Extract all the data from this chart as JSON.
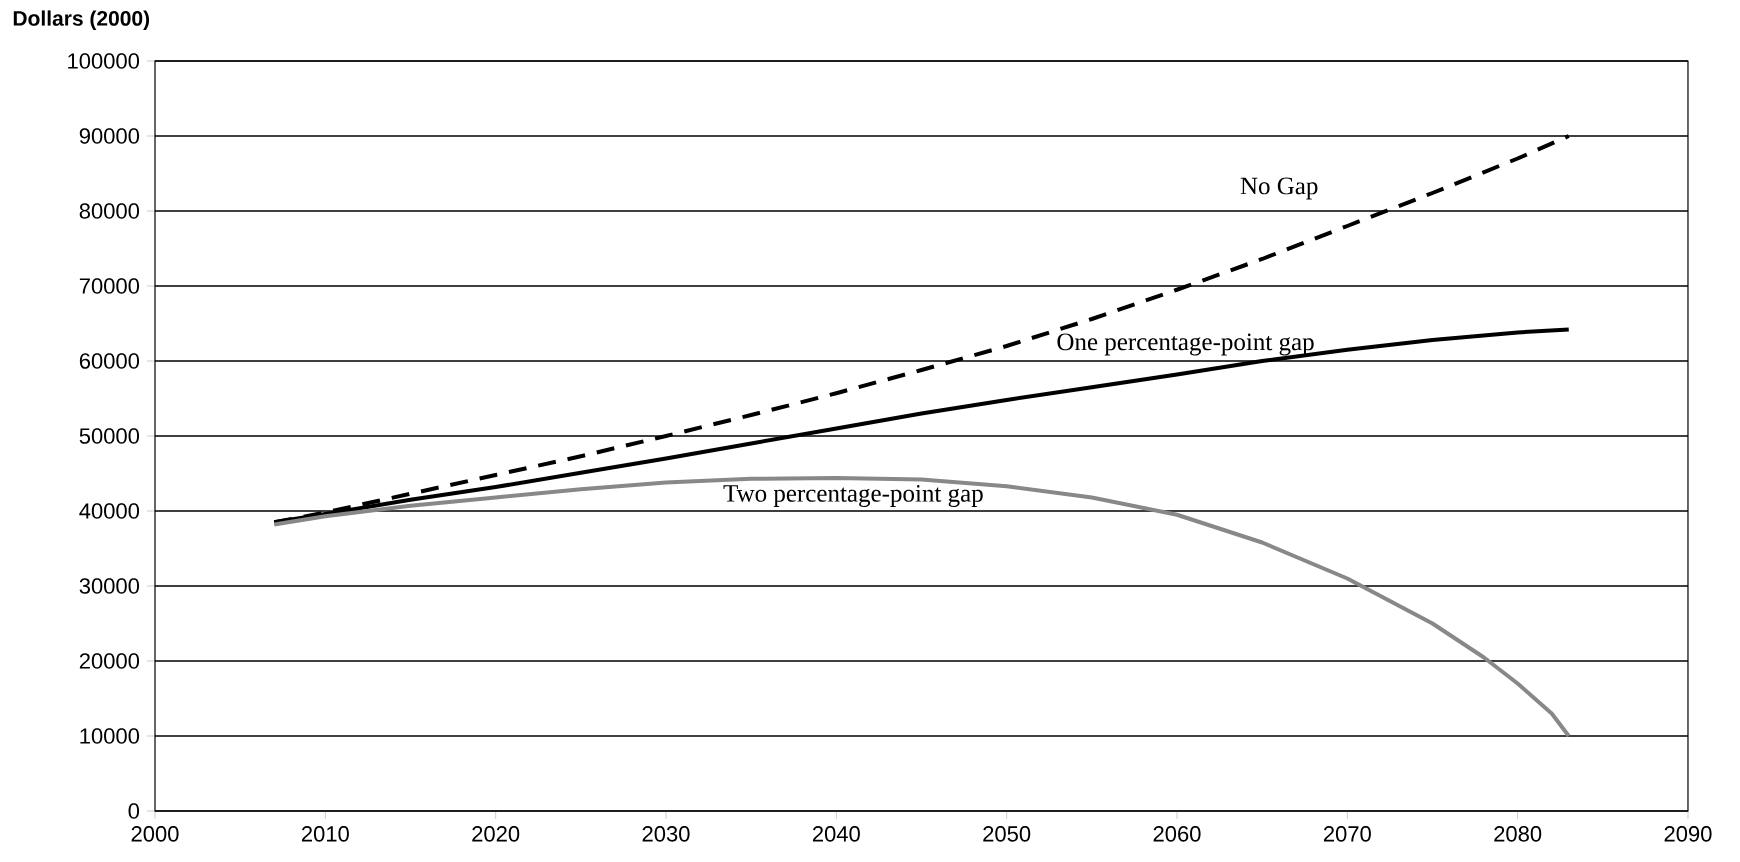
{
  "chart_data": {
    "type": "line",
    "ylabel": "Dollars (2000)",
    "xlim": [
      2000,
      2090
    ],
    "xticks": [
      2000,
      2010,
      2020,
      2030,
      2040,
      2050,
      2060,
      2070,
      2080,
      2090
    ],
    "ylim": [
      0,
      100000
    ],
    "yticks": [
      0,
      10000,
      20000,
      30000,
      40000,
      50000,
      60000,
      70000,
      80000,
      90000,
      100000
    ],
    "grid": "y",
    "legend": false,
    "marker": "none",
    "series": [
      {
        "name": "No Gap",
        "color": "#000000",
        "line_style": "dashed",
        "x": [
          2007,
          2010,
          2015,
          2020,
          2025,
          2030,
          2035,
          2040,
          2045,
          2050,
          2055,
          2060,
          2065,
          2070,
          2075,
          2080,
          2083
        ],
        "values": [
          38500,
          39800,
          42300,
          44800,
          47300,
          50000,
          52800,
          55700,
          58800,
          62000,
          65600,
          69500,
          73600,
          78000,
          82400,
          87000,
          90000
        ]
      },
      {
        "name": "One percentage-point gap",
        "color": "#000000",
        "line_style": "solid",
        "x": [
          2007,
          2010,
          2015,
          2020,
          2025,
          2030,
          2035,
          2040,
          2045,
          2050,
          2055,
          2060,
          2065,
          2070,
          2075,
          2080,
          2083
        ],
        "values": [
          38500,
          39600,
          41500,
          43200,
          45100,
          47000,
          49000,
          51000,
          53000,
          54800,
          56500,
          58200,
          60000,
          61500,
          62800,
          63800,
          64200
        ]
      },
      {
        "name": "Two percentage-point gap",
        "color": "#888888",
        "line_style": "solid",
        "x": [
          2007,
          2010,
          2015,
          2020,
          2025,
          2030,
          2035,
          2040,
          2045,
          2050,
          2055,
          2060,
          2065,
          2070,
          2075,
          2078,
          2080,
          2082,
          2083
        ],
        "values": [
          38200,
          39300,
          40700,
          41800,
          42900,
          43800,
          44300,
          44400,
          44200,
          43300,
          41800,
          39500,
          35800,
          31000,
          25000,
          20500,
          17000,
          13000,
          10000
        ]
      }
    ]
  }
}
